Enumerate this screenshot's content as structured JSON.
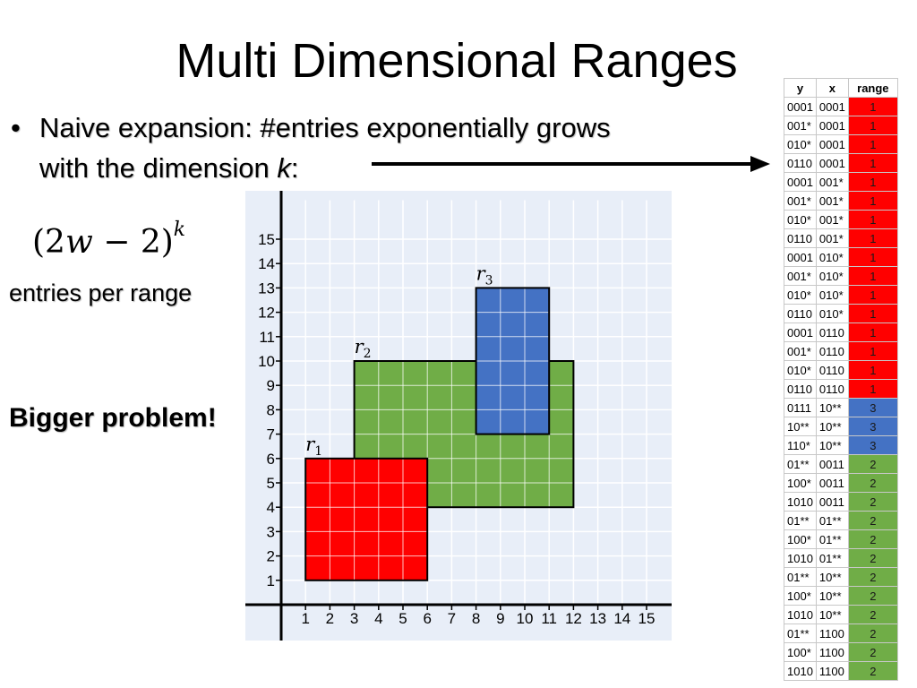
{
  "title": "Multi Dimensional Ranges",
  "bullet": {
    "marker": "•",
    "line1": "Naive expansion: #entries exponentially grows",
    "line2_prefix": "with the dimension ",
    "line2_var": "k",
    "line2_suffix": ":"
  },
  "formula": {
    "base_open": "(2",
    "var": "w",
    "rest": " − 2)",
    "exponent": "k"
  },
  "per_range_text": "entries per range",
  "bigger_problem_text": "Bigger problem!",
  "grid_plot": {
    "x_ticks": [
      "1",
      "2",
      "3",
      "4",
      "5",
      "6",
      "7",
      "8",
      "9",
      "10",
      "11",
      "12",
      "13",
      "14",
      "15"
    ],
    "y_ticks": [
      "1",
      "2",
      "3",
      "4",
      "5",
      "6",
      "7",
      "8",
      "9",
      "10",
      "11",
      "12",
      "13",
      "14",
      "15"
    ],
    "rectangles": [
      {
        "label": "r",
        "sub": "1",
        "x": [
          1,
          6
        ],
        "y": [
          1,
          6
        ],
        "color": "#ff0000"
      },
      {
        "label": "r",
        "sub": "2",
        "x": [
          3,
          12
        ],
        "y": [
          4,
          10
        ],
        "color": "#70ad47"
      },
      {
        "label": "r",
        "sub": "3",
        "x": [
          8,
          11
        ],
        "y": [
          7,
          13
        ],
        "color": "#4472c4"
      }
    ]
  },
  "table": {
    "headers": [
      "y",
      "x",
      "range"
    ],
    "rows": [
      [
        "0001",
        "0001",
        "1"
      ],
      [
        "001*",
        "0001",
        "1"
      ],
      [
        "010*",
        "0001",
        "1"
      ],
      [
        "0110",
        "0001",
        "1"
      ],
      [
        "0001",
        "001*",
        "1"
      ],
      [
        "001*",
        "001*",
        "1"
      ],
      [
        "010*",
        "001*",
        "1"
      ],
      [
        "0110",
        "001*",
        "1"
      ],
      [
        "0001",
        "010*",
        "1"
      ],
      [
        "001*",
        "010*",
        "1"
      ],
      [
        "010*",
        "010*",
        "1"
      ],
      [
        "0110",
        "010*",
        "1"
      ],
      [
        "0001",
        "0110",
        "1"
      ],
      [
        "001*",
        "0110",
        "1"
      ],
      [
        "010*",
        "0110",
        "1"
      ],
      [
        "0110",
        "0110",
        "1"
      ],
      [
        "0111",
        "10**",
        "3"
      ],
      [
        "10**",
        "10**",
        "3"
      ],
      [
        "110*",
        "10**",
        "3"
      ],
      [
        "01**",
        "0011",
        "2"
      ],
      [
        "100*",
        "0011",
        "2"
      ],
      [
        "1010",
        "0011",
        "2"
      ],
      [
        "01**",
        "01**",
        "2"
      ],
      [
        "100*",
        "01**",
        "2"
      ],
      [
        "1010",
        "01**",
        "2"
      ],
      [
        "01**",
        "10**",
        "2"
      ],
      [
        "100*",
        "10**",
        "2"
      ],
      [
        "1010",
        "10**",
        "2"
      ],
      [
        "01**",
        "1100",
        "2"
      ],
      [
        "100*",
        "1100",
        "2"
      ],
      [
        "1010",
        "1100",
        "2"
      ]
    ]
  },
  "colors": {
    "range_1": "#ff0000",
    "range_2": "#70ad47",
    "range_3": "#4472c4",
    "plot_bg": "#e8eef8"
  }
}
